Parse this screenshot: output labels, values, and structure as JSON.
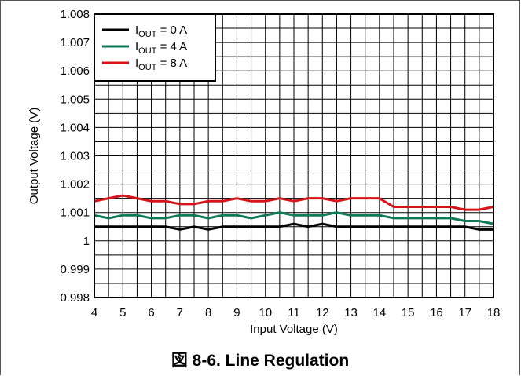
{
  "chart_data": {
    "type": "line",
    "title": "",
    "caption": "図 8-6. Line Regulation",
    "xlabel": "Input Voltage (V)",
    "ylabel": "Output Voltage (V)",
    "xlim": [
      4,
      18
    ],
    "ylim": [
      0.998,
      1.008
    ],
    "xticks": [
      "4",
      "5",
      "6",
      "7",
      "8",
      "9",
      "10",
      "11",
      "12",
      "13",
      "14",
      "15",
      "16",
      "17",
      "18"
    ],
    "yticks": [
      "0.998",
      "0.999",
      "1",
      "1.001",
      "1.002",
      "1.003",
      "1.004",
      "1.005",
      "1.006",
      "1.007",
      "1.008"
    ],
    "grid": true,
    "legend_position": "top-left",
    "x": [
      4,
      4.5,
      5,
      5.5,
      6,
      6.5,
      7,
      7.5,
      8,
      8.5,
      9,
      9.5,
      10,
      10.5,
      11,
      11.5,
      12,
      12.5,
      13,
      13.5,
      14,
      14.5,
      15,
      15.5,
      16,
      16.5,
      17,
      17.5,
      18
    ],
    "series": [
      {
        "name_main": "I",
        "name_sub": "OUT",
        "name_rest": " = 0 A",
        "color": "#000000",
        "values": [
          1.0005,
          1.0005,
          1.0005,
          1.0005,
          1.0005,
          1.0005,
          1.0004,
          1.0005,
          1.0004,
          1.0005,
          1.0005,
          1.0005,
          1.0005,
          1.0005,
          1.0006,
          1.0005,
          1.0006,
          1.0005,
          1.0005,
          1.0005,
          1.0005,
          1.0005,
          1.0005,
          1.0005,
          1.0005,
          1.0005,
          1.0005,
          1.0004,
          1.0004
        ]
      },
      {
        "name_main": "I",
        "name_sub": "OUT",
        "name_rest": " = 4 A",
        "color": "#0e7a55",
        "values": [
          1.0009,
          1.0008,
          1.0009,
          1.0009,
          1.0008,
          1.0008,
          1.0009,
          1.0009,
          1.0008,
          1.0009,
          1.0009,
          1.0008,
          1.0009,
          1.001,
          1.0009,
          1.0009,
          1.0009,
          1.001,
          1.0009,
          1.0009,
          1.0009,
          1.0008,
          1.0008,
          1.0008,
          1.0008,
          1.0008,
          1.0007,
          1.0007,
          1.0006
        ]
      },
      {
        "name_main": "I",
        "name_sub": "OUT",
        "name_rest": " = 8 A",
        "color": "#d7141a",
        "values": [
          1.0014,
          1.0015,
          1.0016,
          1.0015,
          1.0014,
          1.0014,
          1.0013,
          1.0013,
          1.0014,
          1.0014,
          1.0015,
          1.0014,
          1.0014,
          1.0015,
          1.0014,
          1.0015,
          1.0015,
          1.0014,
          1.0015,
          1.0015,
          1.0015,
          1.0012,
          1.0012,
          1.0012,
          1.0012,
          1.0012,
          1.0011,
          1.0011,
          1.0012
        ]
      }
    ]
  }
}
